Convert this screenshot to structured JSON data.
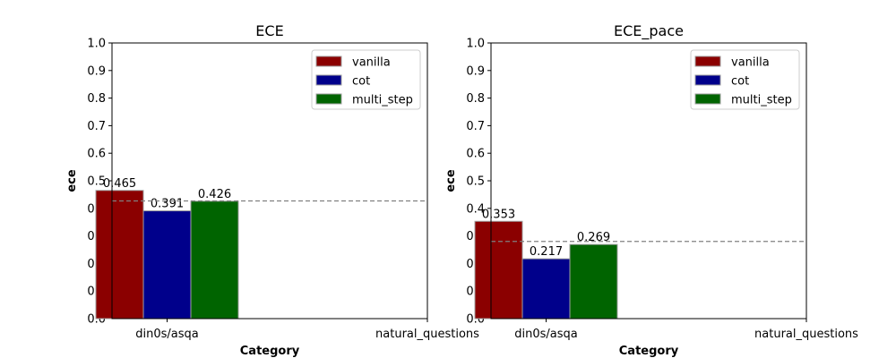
{
  "chart_data": [
    {
      "type": "bar",
      "title": "ECE",
      "xlabel": "Category",
      "ylabel": "ece",
      "ylim": [
        0,
        1
      ],
      "yticks": [
        "0.0",
        "0.1",
        "0.2",
        "0.3",
        "0.4",
        "0.5",
        "0.6",
        "0.7",
        "0.8",
        "0.9",
        "1.0"
      ],
      "categories": [
        "din0s/asqa",
        "natural_questions"
      ],
      "series": [
        {
          "name": "vanilla",
          "color": "#8b0000",
          "values": [
            0.465,
            null
          ]
        },
        {
          "name": "cot",
          "color": "#00008b",
          "values": [
            0.391,
            null
          ]
        },
        {
          "name": "multi_step",
          "color": "#006400",
          "values": [
            0.426,
            null
          ]
        }
      ],
      "data_labels": [
        "0.465",
        "0.391",
        "0.426"
      ],
      "reference_line": {
        "value": 0.427,
        "style": "dashed",
        "color": "#808080"
      },
      "legend": {
        "position": "upper right",
        "items": [
          "vanilla",
          "cot",
          "multi_step"
        ]
      },
      "grid": false
    },
    {
      "type": "bar",
      "title": "ECE_pace",
      "xlabel": "Category",
      "ylabel": "ece",
      "ylim": [
        0,
        1
      ],
      "yticks": [
        "0.0",
        "0.1",
        "0.2",
        "0.3",
        "0.4",
        "0.5",
        "0.6",
        "0.7",
        "0.8",
        "0.9",
        "1.0"
      ],
      "categories": [
        "din0s/asqa",
        "natural_questions"
      ],
      "series": [
        {
          "name": "vanilla",
          "color": "#8b0000",
          "values": [
            0.353,
            null
          ]
        },
        {
          "name": "cot",
          "color": "#00008b",
          "values": [
            0.217,
            null
          ]
        },
        {
          "name": "multi_step",
          "color": "#006400",
          "values": [
            0.269,
            null
          ]
        }
      ],
      "data_labels": [
        "0.353",
        "0.217",
        "0.269"
      ],
      "reference_line": {
        "value": 0.28,
        "style": "dashed",
        "color": "#808080"
      },
      "legend": {
        "position": "upper right",
        "items": [
          "vanilla",
          "cot",
          "multi_step"
        ]
      },
      "grid": false
    }
  ]
}
